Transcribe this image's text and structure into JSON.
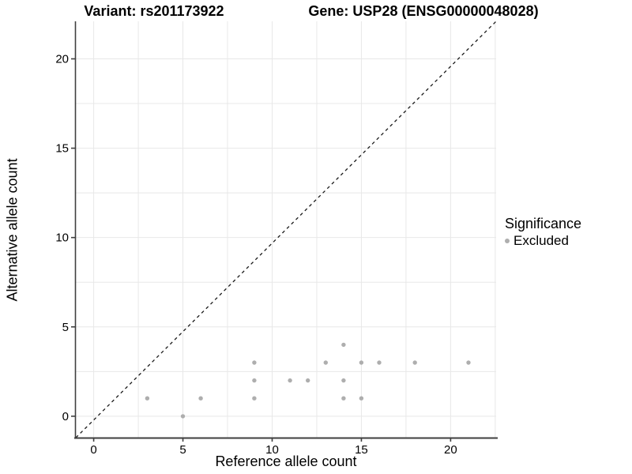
{
  "titles": {
    "variant": "Variant: rs201173922",
    "gene": "Gene: USP28 (ENSG00000048028)"
  },
  "axes": {
    "x_label": "Reference allele count",
    "y_label": "Alternative allele count"
  },
  "legend": {
    "title": "Significance",
    "items": [
      {
        "label": "Excluded",
        "color": "#aeaeae"
      }
    ]
  },
  "colors": {
    "background": "#ffffff",
    "gridline": "#e8e8e8",
    "axis_line": "#3f3f3f",
    "identity_line": "#1a1a1a",
    "point": "#aeaeae",
    "text": "#000000"
  },
  "chart_data": {
    "type": "scatter",
    "title_left": "Variant: rs201173922",
    "title_right": "Gene: USP28 (ENSG00000048028)",
    "xlabel": "Reference allele count",
    "ylabel": "Alternative allele count",
    "x_ticks": [
      0,
      5,
      10,
      15,
      20
    ],
    "y_ticks": [
      0,
      5,
      10,
      15,
      20
    ],
    "x_range": [
      -1.0,
      22.55
    ],
    "y_range": [
      -1.2,
      22.1
    ],
    "grid": true,
    "grid_interval": 2.5,
    "identity_line": {
      "show": true,
      "style": "dashed",
      "equation": "y = x"
    },
    "legend_position": "right",
    "series": [
      {
        "name": "Excluded",
        "color": "#aeaeae",
        "points": [
          [
            3,
            1
          ],
          [
            5,
            0
          ],
          [
            6,
            1
          ],
          [
            9,
            1
          ],
          [
            9,
            2
          ],
          [
            9,
            3
          ],
          [
            11,
            2
          ],
          [
            12,
            2
          ],
          [
            13,
            3
          ],
          [
            14,
            1
          ],
          [
            14,
            2
          ],
          [
            14,
            4
          ],
          [
            15,
            1
          ],
          [
            15,
            3
          ],
          [
            16,
            3
          ],
          [
            18,
            3
          ],
          [
            21,
            3
          ]
        ]
      }
    ]
  }
}
